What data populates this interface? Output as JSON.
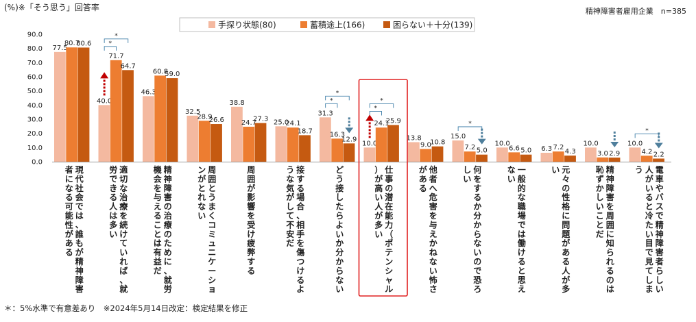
{
  "header": {
    "top_left": "(%)※「そう思う」回答率",
    "top_right": "精神障害者雇用企業　n=385"
  },
  "footer": {
    "note": "＊：5%水準で有意差あり　※2024年5月14日改定：検定結果を修正"
  },
  "colors": {
    "series1": "#f4b9a0",
    "series2": "#ed7d31",
    "series3": "#c55a11",
    "bracket": "#3e7ea8",
    "arrow_up": "#c00000",
    "arrow_down": "#4f7f9c",
    "highlight": "#e02020",
    "axis": "#999999"
  },
  "chart_data": {
    "type": "bar",
    "title": "",
    "xlabel": "",
    "ylabel": "",
    "ylim": [
      0,
      90
    ],
    "yticks": [
      "0.0",
      "10.0",
      "20.0",
      "30.0",
      "40.0",
      "50.0",
      "60.0",
      "70.0",
      "80.0",
      "90.0"
    ],
    "legend_position": "top-center",
    "series": [
      {
        "name": "手探り状態(80)",
        "values": [
          77.5,
          40.0,
          46.3,
          32.5,
          38.8,
          25.0,
          31.3,
          10.0,
          13.8,
          15.0,
          10.0,
          6.3,
          10.0,
          10.0
        ]
      },
      {
        "name": "蓄積途上(166)",
        "values": [
          80.7,
          71.7,
          60.8,
          28.9,
          24.7,
          24.1,
          16.3,
          24.1,
          9.0,
          7.2,
          6.6,
          7.2,
          3.0,
          4.2
        ]
      },
      {
        "name": "困らない＋十分(139)",
        "values": [
          80.6,
          64.7,
          59.0,
          26.6,
          27.3,
          18.7,
          12.9,
          25.9,
          10.8,
          5.0,
          5.0,
          4.3,
          2.9,
          2.2
        ]
      }
    ],
    "value_labels": [
      [
        "77.5",
        "80.7",
        "80.6"
      ],
      [
        "40.0",
        "71.7",
        "64.7"
      ],
      [
        "46.3",
        "60.8",
        "59.0"
      ],
      [
        "32.5",
        "28.9",
        "26.6"
      ],
      [
        "38.8",
        "24.7",
        "27.3"
      ],
      [
        "25.0",
        "24.1",
        "18.7"
      ],
      [
        "31.3",
        "16.3",
        "12.9"
      ],
      [
        "10.0",
        "24.1",
        "25.9"
      ],
      [
        "13.8",
        "9.0",
        "10.8"
      ],
      [
        "15.0",
        "7.2",
        "5.0"
      ],
      [
        "10.0",
        "6.6",
        "5.0"
      ],
      [
        "6.3",
        "7.2",
        "4.3"
      ],
      [
        "10.0",
        "3.0",
        "2.9"
      ],
      [
        "10.0",
        "4.2",
        "2.2"
      ]
    ],
    "categories": [
      "現代社会では、誰もが精神障害者になる可能性がある",
      "適切な治療を続けていれば、就労できる人は多い",
      "精神障害の治療のために、就労機会を与えることは有益だ",
      "周囲とうまくコミュニケーションがとれない",
      "周囲が影響を受け疲弊する",
      "接する場合、相手を傷つけるような気がして不安だ",
      "どう接したらよいか分からない",
      "仕事の潜在能力（ポテンシャル）が高い人が多い",
      "他者へ危害を与えかねない怖さがある",
      "何をするか分からないので恐ろしい",
      "一般的な職場では働けると思えない",
      "元々の性格に問題がある人が多い",
      "精神障害を周囲に知られるのは恥ずかしいことだ",
      "電車やバスで精神障害者らしい人がいると冷たい目で見てしまう"
    ],
    "significance": [
      {
        "category": 1,
        "brackets": [
          {
            "from": 0,
            "to": 1,
            "label": "*"
          },
          {
            "from": 0,
            "to": 2,
            "label": "*"
          }
        ],
        "arrow": "up"
      },
      {
        "category": 6,
        "brackets": [
          {
            "from": 0,
            "to": 1,
            "label": "*"
          },
          {
            "from": 0,
            "to": 2,
            "label": "*"
          }
        ],
        "arrow": "down"
      },
      {
        "category": 7,
        "brackets": [
          {
            "from": 0,
            "to": 1,
            "label": "*"
          },
          {
            "from": 0,
            "to": 2,
            "label": "*"
          }
        ],
        "arrow": "up"
      },
      {
        "category": 9,
        "brackets": [
          {
            "from": 0,
            "to": 2,
            "label": "*"
          }
        ],
        "arrow": "down"
      },
      {
        "category": 12,
        "brackets": [],
        "arrow": "down"
      },
      {
        "category": 13,
        "brackets": [
          {
            "from": 0,
            "to": 2,
            "label": "*"
          }
        ],
        "arrow": "down"
      }
    ],
    "highlighted_category": 7
  }
}
